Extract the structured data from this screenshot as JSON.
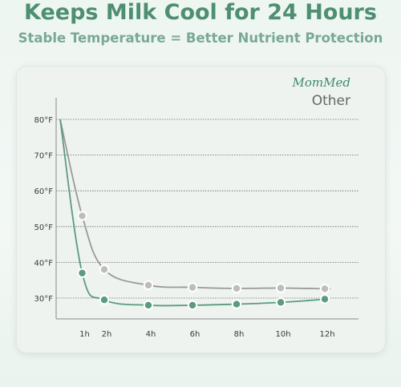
{
  "header": {
    "title": "Keeps Milk Cool for 24 Hours",
    "subtitle": "Stable Temperature = Better Nutrient Protection"
  },
  "colors": {
    "accent": "#4e8f72",
    "mommed": "#5a9c7e",
    "other": "#999999",
    "dot_fill": "#bdbdbd"
  },
  "chart_data": {
    "type": "line",
    "title": "",
    "xlabel": "",
    "ylabel": "",
    "x_ticks": [
      "1h",
      "2h",
      "4h",
      "6h",
      "8h",
      "10h",
      "12h"
    ],
    "y_ticks": [
      "80°F",
      "70°F",
      "60°F",
      "50°F",
      "40°F",
      "30°F"
    ],
    "ylim": [
      26,
      82
    ],
    "xlim": [
      0,
      12
    ],
    "grid": true,
    "legend": "top-right",
    "series": [
      {
        "name": "MomMed",
        "start": [
          0,
          80
        ],
        "x": [
          1,
          2,
          4,
          6,
          8,
          10,
          12
        ],
        "values": [
          37,
          29.5,
          28,
          28,
          28.3,
          28.8,
          29.7
        ],
        "end": [
          12,
          29.9
        ]
      },
      {
        "name": "Other",
        "start": [
          0,
          80
        ],
        "x": [
          1,
          2,
          4,
          6,
          8,
          10,
          12
        ],
        "values": [
          53,
          38,
          33.6,
          33,
          32.7,
          32.8,
          32.6
        ],
        "end": [
          12.2,
          32.6
        ]
      }
    ]
  }
}
